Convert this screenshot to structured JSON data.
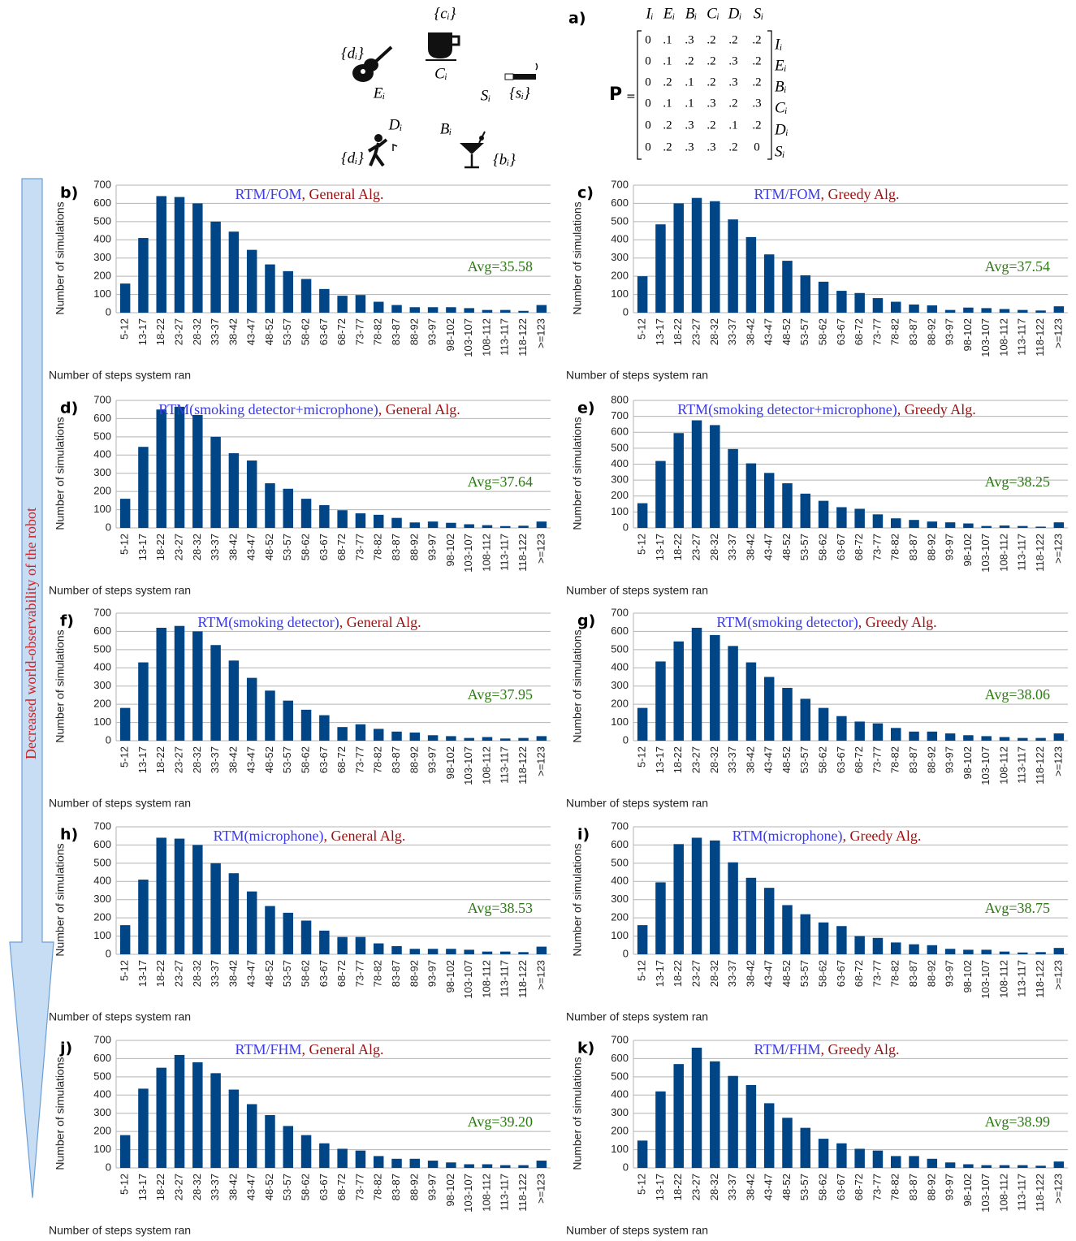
{
  "diagram": {
    "label": "a)",
    "matrix_name": "P",
    "equals": "=",
    "columns": [
      "Iᵢ",
      "Eᵢ",
      "Bᵢ",
      "Cᵢ",
      "Dᵢ",
      "Sᵢ"
    ],
    "row_labels": [
      "Iᵢ",
      "Eᵢ",
      "Bᵢ",
      "Cᵢ",
      "Dᵢ",
      "Sᵢ"
    ],
    "rows": [
      [
        "0",
        ".1",
        ".3",
        ".2",
        ".2",
        ".2"
      ],
      [
        "0",
        ".1",
        ".2",
        ".2",
        ".3",
        ".2"
      ],
      [
        "0",
        ".2",
        ".1",
        ".2",
        ".3",
        ".2"
      ],
      [
        "0",
        ".1",
        ".1",
        ".3",
        ".2",
        ".3"
      ],
      [
        "0",
        ".2",
        ".3",
        ".2",
        ".1",
        ".2"
      ],
      [
        "0",
        ".2",
        ".3",
        ".3",
        ".2",
        "0"
      ]
    ],
    "nodes": [
      {
        "label": "Cᵢ",
        "observation": "{cᵢ}"
      },
      {
        "label": "Eᵢ",
        "observation": "{dᵢ}"
      },
      {
        "label": "Sᵢ",
        "observation": "{sᵢ}"
      },
      {
        "label": "Dᵢ",
        "observation": "{dᵢ}"
      },
      {
        "label": "Bᵢ",
        "observation": "{bᵢ}"
      }
    ],
    "arrow_label": "Decreased world-observability of the robot"
  },
  "chart_data": [
    {
      "type": "bar",
      "panel": "b)",
      "title_parts": [
        {
          "text": "RTM/FOM",
          "color": "#3a3ae8"
        },
        {
          "text": ", General Alg.",
          "color": "#9b1010"
        }
      ],
      "annotation": "Avg=35.58",
      "annotation_color": "#2c7a12",
      "ylabel": "Number of simulations",
      "xlabel": "Number of steps system ran",
      "color": "#004586",
      "grid": true,
      "ylim": [
        0,
        700
      ],
      "yticks": [
        0,
        100,
        200,
        300,
        400,
        500,
        600,
        700
      ],
      "categories": [
        "5-12",
        "13-17",
        "18-22",
        "23-27",
        "28-32",
        "33-37",
        "38-42",
        "43-47",
        "48-52",
        "53-57",
        "58-62",
        "63-67",
        "68-72",
        "73-77",
        "78-82",
        "83-87",
        "88-92",
        "93-97",
        "98-102",
        "103-107",
        "108-112",
        "113-117",
        "118-122",
        ">=123"
      ],
      "values": [
        160,
        410,
        640,
        635,
        600,
        500,
        445,
        345,
        265,
        228,
        185,
        130,
        93,
        97,
        60,
        42,
        30,
        30,
        30,
        25,
        15,
        15,
        10,
        42
      ]
    },
    {
      "type": "bar",
      "panel": "c)",
      "title_parts": [
        {
          "text": "RTM/FOM",
          "color": "#3a3ae8"
        },
        {
          "text": ", Greedy Alg.",
          "color": "#9b1010"
        }
      ],
      "annotation": "Avg=37.54",
      "annotation_color": "#2c7a12",
      "ylabel": "Number of simulations",
      "xlabel": "Number of steps system ran",
      "color": "#004586",
      "grid": true,
      "ylim": [
        0,
        700
      ],
      "yticks": [
        0,
        100,
        200,
        300,
        400,
        500,
        600,
        700
      ],
      "categories": [
        "5-12",
        "13-17",
        "18-22",
        "23-27",
        "28-32",
        "33-37",
        "38-42",
        "43-47",
        "48-52",
        "53-57",
        "58-62",
        "63-67",
        "68-72",
        "73-77",
        "78-82",
        "83-87",
        "88-92",
        "93-97",
        "98-102",
        "103-107",
        "108-112",
        "113-117",
        "118-122",
        ">=123"
      ],
      "values": [
        200,
        485,
        600,
        630,
        612,
        512,
        415,
        320,
        285,
        205,
        170,
        120,
        108,
        80,
        60,
        45,
        40,
        15,
        28,
        25,
        20,
        15,
        12,
        35
      ]
    },
    {
      "type": "bar",
      "panel": "d)",
      "title_parts": [
        {
          "text": "RTM(smoking detector+microphone)",
          "color": "#3a3ae8"
        },
        {
          "text": ", General Alg.",
          "color": "#9b1010"
        }
      ],
      "annotation": "Avg=37.64",
      "annotation_color": "#2c7a12",
      "ylabel": "Number of simulations",
      "xlabel": "Number of steps system ran",
      "color": "#004586",
      "grid": true,
      "ylim": [
        0,
        700
      ],
      "yticks": [
        0,
        100,
        200,
        300,
        400,
        500,
        600,
        700
      ],
      "categories": [
        "5-12",
        "13-17",
        "18-22",
        "23-27",
        "28-32",
        "33-37",
        "38-42",
        "43-47",
        "48-52",
        "53-57",
        "58-62",
        "63-67",
        "68-72",
        "73-77",
        "78-82",
        "83-87",
        "88-92",
        "93-97",
        "98-102",
        "103-107",
        "108-112",
        "113-117",
        "118-122",
        ">=123"
      ],
      "values": [
        160,
        445,
        650,
        665,
        620,
        500,
        410,
        370,
        245,
        215,
        160,
        125,
        97,
        80,
        72,
        55,
        30,
        35,
        28,
        20,
        15,
        10,
        12,
        35
      ]
    },
    {
      "type": "bar",
      "panel": "e)",
      "title_parts": [
        {
          "text": "RTM(smoking detector+microphone)",
          "color": "#3a3ae8"
        },
        {
          "text": ", Greedy Alg.",
          "color": "#9b1010"
        }
      ],
      "annotation": "Avg=38.25",
      "annotation_color": "#2c7a12",
      "ylabel": "Number of simulations",
      "xlabel": "Number of steps system ran",
      "color": "#004586",
      "grid": true,
      "ylim": [
        0,
        800
      ],
      "yticks": [
        0,
        100,
        200,
        300,
        400,
        500,
        600,
        700,
        800
      ],
      "categories": [
        "5-12",
        "13-17",
        "18-22",
        "23-27",
        "28-32",
        "33-37",
        "38-42",
        "43-47",
        "48-52",
        "53-57",
        "58-62",
        "63-67",
        "68-72",
        "73-77",
        "78-82",
        "83-87",
        "88-92",
        "93-97",
        "98-102",
        "103-107",
        "108-112",
        "113-117",
        "118-122",
        ">=123"
      ],
      "values": [
        155,
        420,
        595,
        675,
        645,
        495,
        405,
        345,
        280,
        215,
        170,
        130,
        120,
        85,
        60,
        50,
        40,
        35,
        28,
        12,
        15,
        12,
        8,
        35
      ]
    },
    {
      "type": "bar",
      "panel": "f)",
      "title_parts": [
        {
          "text": "RTM(smoking detector)",
          "color": "#3a3ae8"
        },
        {
          "text": ", General Alg.",
          "color": "#9b1010"
        }
      ],
      "annotation": "Avg=37.95",
      "annotation_color": "#2c7a12",
      "ylabel": "Number of simulations",
      "xlabel": "Number of steps system ran",
      "color": "#004586",
      "grid": true,
      "ylim": [
        0,
        700
      ],
      "yticks": [
        0,
        100,
        200,
        300,
        400,
        500,
        600,
        700
      ],
      "categories": [
        "5-12",
        "13-17",
        "18-22",
        "23-27",
        "28-32",
        "33-37",
        "38-42",
        "43-47",
        "48-52",
        "53-57",
        "58-62",
        "63-67",
        "68-72",
        "73-77",
        "78-82",
        "83-87",
        "88-92",
        "93-97",
        "98-102",
        "103-107",
        "108-112",
        "113-117",
        "118-122",
        ">=123"
      ],
      "values": [
        180,
        430,
        620,
        630,
        600,
        525,
        440,
        345,
        275,
        220,
        170,
        140,
        75,
        90,
        65,
        50,
        45,
        30,
        25,
        15,
        20,
        12,
        15,
        25
      ]
    },
    {
      "type": "bar",
      "panel": "g)",
      "title_parts": [
        {
          "text": "RTM(smoking detector)",
          "color": "#3a3ae8"
        },
        {
          "text": ", Greedy Alg.",
          "color": "#9b1010"
        }
      ],
      "annotation": "Avg=38.06",
      "annotation_color": "#2c7a12",
      "ylabel": "Number of simulations",
      "xlabel": "Number of steps system ran",
      "color": "#004586",
      "grid": true,
      "ylim": [
        0,
        700
      ],
      "yticks": [
        0,
        100,
        200,
        300,
        400,
        500,
        600,
        700
      ],
      "categories": [
        "5-12",
        "13-17",
        "18-22",
        "23-27",
        "28-32",
        "33-37",
        "38-42",
        "43-47",
        "48-52",
        "53-57",
        "58-62",
        "63-67",
        "68-72",
        "73-77",
        "78-82",
        "83-87",
        "88-92",
        "93-97",
        "98-102",
        "103-107",
        "108-112",
        "113-117",
        "118-122",
        ">=123"
      ],
      "values": [
        180,
        435,
        545,
        620,
        580,
        520,
        430,
        350,
        290,
        230,
        180,
        135,
        105,
        95,
        70,
        50,
        50,
        40,
        30,
        25,
        20,
        15,
        15,
        40
      ]
    },
    {
      "type": "bar",
      "panel": "h)",
      "title_parts": [
        {
          "text": "RTM(microphone)",
          "color": "#3a3ae8"
        },
        {
          "text": ", General Alg.",
          "color": "#9b1010"
        }
      ],
      "annotation": "Avg=38.53",
      "annotation_color": "#2c7a12",
      "ylabel": "Number of simulations",
      "xlabel": "Number of steps system ran",
      "color": "#004586",
      "grid": true,
      "ylim": [
        0,
        700
      ],
      "yticks": [
        0,
        100,
        200,
        300,
        400,
        500,
        600,
        700
      ],
      "categories": [
        "5-12",
        "13-17",
        "18-22",
        "23-27",
        "28-32",
        "33-37",
        "38-42",
        "43-47",
        "48-52",
        "53-57",
        "58-62",
        "63-67",
        "68-72",
        "73-77",
        "78-82",
        "83-87",
        "88-92",
        "93-97",
        "98-102",
        "103-107",
        "108-112",
        "113-117",
        "118-122",
        ">=123"
      ],
      "values": [
        160,
        410,
        640,
        635,
        600,
        500,
        445,
        345,
        265,
        228,
        185,
        130,
        95,
        95,
        60,
        45,
        30,
        30,
        30,
        25,
        15,
        15,
        12,
        42
      ]
    },
    {
      "type": "bar",
      "panel": "i)",
      "title_parts": [
        {
          "text": "RTM(microphone)",
          "color": "#3a3ae8"
        },
        {
          "text": ", Greedy Alg.",
          "color": "#9b1010"
        }
      ],
      "annotation": "Avg=38.75",
      "annotation_color": "#2c7a12",
      "ylabel": "Number of simulations",
      "xlabel": "Number of steps system ran",
      "color": "#004586",
      "grid": true,
      "ylim": [
        0,
        700
      ],
      "yticks": [
        0,
        100,
        200,
        300,
        400,
        500,
        600,
        700
      ],
      "categories": [
        "5-12",
        "13-17",
        "18-22",
        "23-27",
        "28-32",
        "33-37",
        "38-42",
        "43-47",
        "48-52",
        "53-57",
        "58-62",
        "63-67",
        "68-72",
        "73-77",
        "78-82",
        "83-87",
        "88-92",
        "93-97",
        "98-102",
        "103-107",
        "108-112",
        "113-117",
        "118-122",
        ">=123"
      ],
      "values": [
        160,
        395,
        605,
        640,
        625,
        505,
        420,
        365,
        270,
        220,
        175,
        155,
        100,
        90,
        65,
        55,
        50,
        30,
        25,
        25,
        15,
        10,
        12,
        35
      ]
    },
    {
      "type": "bar",
      "panel": "j)",
      "title_parts": [
        {
          "text": "RTM/FHM",
          "color": "#3a3ae8"
        },
        {
          "text": ", General Alg.",
          "color": "#9b1010"
        }
      ],
      "annotation": "Avg=39.20",
      "annotation_color": "#2c7a12",
      "ylabel": "Number of simulations",
      "xlabel": "Number of steps system ran",
      "color": "#004586",
      "grid": true,
      "ylim": [
        0,
        700
      ],
      "yticks": [
        0,
        100,
        200,
        300,
        400,
        500,
        600,
        700
      ],
      "categories": [
        "5-12",
        "13-17",
        "18-22",
        "23-27",
        "28-32",
        "33-37",
        "38-42",
        "43-47",
        "48-52",
        "53-57",
        "58-62",
        "63-67",
        "68-72",
        "73-77",
        "78-82",
        "83-87",
        "88-92",
        "93-97",
        "98-102",
        "103-107",
        "108-112",
        "113-117",
        "118-122",
        ">=123"
      ],
      "values": [
        180,
        435,
        550,
        620,
        580,
        520,
        430,
        350,
        290,
        230,
        180,
        135,
        105,
        95,
        65,
        50,
        50,
        40,
        30,
        20,
        20,
        15,
        15,
        40
      ]
    },
    {
      "type": "bar",
      "panel": "k)",
      "title_parts": [
        {
          "text": "RTM/FHM",
          "color": "#3a3ae8"
        },
        {
          "text": ", Greedy Alg.",
          "color": "#9b1010"
        }
      ],
      "annotation": "Avg=38.99",
      "annotation_color": "#2c7a12",
      "ylabel": "Number of simulations",
      "xlabel": "Number of steps system ran",
      "color": "#004586",
      "grid": true,
      "ylim": [
        0,
        700
      ],
      "yticks": [
        0,
        100,
        200,
        300,
        400,
        500,
        600,
        700
      ],
      "categories": [
        "5-12",
        "13-17",
        "18-22",
        "23-27",
        "28-32",
        "33-37",
        "38-42",
        "43-47",
        "48-52",
        "53-57",
        "58-62",
        "63-67",
        "68-72",
        "73-77",
        "78-82",
        "83-87",
        "88-92",
        "93-97",
        "98-102",
        "103-107",
        "108-112",
        "113-117",
        "118-122",
        ">=123"
      ],
      "values": [
        150,
        420,
        570,
        660,
        585,
        505,
        455,
        355,
        275,
        220,
        160,
        135,
        105,
        95,
        65,
        65,
        50,
        30,
        20,
        15,
        15,
        15,
        12,
        35
      ]
    }
  ]
}
